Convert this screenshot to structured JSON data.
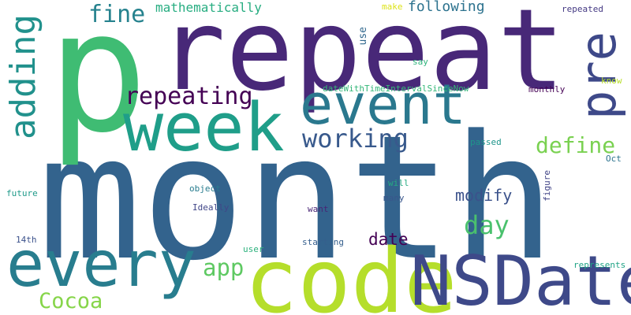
{
  "words": [
    {
      "text": "month",
      "color": "#33638d"
    },
    {
      "text": "repeat",
      "color": "#482878"
    },
    {
      "text": "p",
      "color": "#3fbc73"
    },
    {
      "text": "code",
      "color": "#b5de2b"
    },
    {
      "text": "NSDate",
      "color": "#3e4989"
    },
    {
      "text": "week",
      "color": "#1f9e89"
    },
    {
      "text": "every",
      "color": "#287d8e"
    },
    {
      "text": "event",
      "color": "#2a788e"
    },
    {
      "text": "pre",
      "color": "#3e4989"
    },
    {
      "text": "adding",
      "color": "#21918c"
    },
    {
      "text": "repeating",
      "color": "#440154"
    },
    {
      "text": "working",
      "color": "#38598c"
    },
    {
      "text": "define",
      "color": "#7ad151"
    },
    {
      "text": "fine",
      "color": "#26828e"
    },
    {
      "text": "day",
      "color": "#4ac16d"
    },
    {
      "text": "app",
      "color": "#5ec962"
    },
    {
      "text": "Cocoa",
      "color": "#86d549"
    },
    {
      "text": "modify",
      "color": "#3b528b"
    },
    {
      "text": "date",
      "color": "#440154"
    },
    {
      "text": "following",
      "color": "#2c728e"
    },
    {
      "text": "mathematically",
      "color": "#27ad81"
    },
    {
      "text": "dateWithTimeIntervalSinceNow",
      "color": "#35b779"
    },
    {
      "text": "use",
      "color": "#31688e"
    },
    {
      "text": "make",
      "color": "#dde318"
    },
    {
      "text": "repeated",
      "color": "#443983"
    },
    {
      "text": "say",
      "color": "#2fb47c"
    },
    {
      "text": "know",
      "color": "#b8de29"
    },
    {
      "text": "monthly",
      "color": "#440154"
    },
    {
      "text": "passed",
      "color": "#1f958b"
    },
    {
      "text": "Oct",
      "color": "#2c738e"
    },
    {
      "text": "will",
      "color": "#25ab82"
    },
    {
      "text": "many",
      "color": "#39568c"
    },
    {
      "text": "figure",
      "color": "#414487"
    },
    {
      "text": "object",
      "color": "#287c8e"
    },
    {
      "text": "Ideally",
      "color": "#404688"
    },
    {
      "text": "want",
      "color": "#482475"
    },
    {
      "text": "future",
      "color": "#1f9a8a"
    },
    {
      "text": "14th",
      "color": "#3b518b"
    },
    {
      "text": "user",
      "color": "#2db27d"
    },
    {
      "text": "starting",
      "color": "#355f8d"
    },
    {
      "text": "represents",
      "color": "#20a386"
    }
  ]
}
